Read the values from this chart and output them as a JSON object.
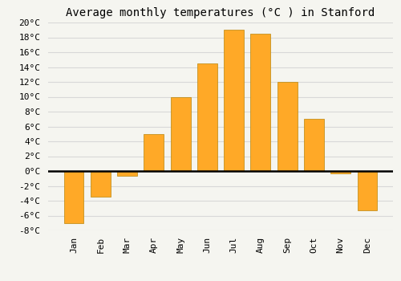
{
  "title": "Average monthly temperatures (°C ) in Stanford",
  "months": [
    "Jan",
    "Feb",
    "Mar",
    "Apr",
    "May",
    "Jun",
    "Jul",
    "Aug",
    "Sep",
    "Oct",
    "Nov",
    "Dec"
  ],
  "values": [
    -7,
    -3.5,
    -0.7,
    5,
    10,
    14.5,
    19,
    18.5,
    12,
    7,
    -0.3,
    -5.3
  ],
  "bar_color": "#FFA927",
  "bar_edge_color": "#B8860B",
  "ylim": [
    -8,
    20
  ],
  "yticks": [
    -8,
    -6,
    -4,
    -2,
    0,
    2,
    4,
    6,
    8,
    10,
    12,
    14,
    16,
    18,
    20
  ],
  "background_color": "#f5f5f0",
  "plot_bg_color": "#f5f5f0",
  "grid_color": "#d8d8d8",
  "title_fontsize": 10,
  "tick_fontsize": 8,
  "zero_line_color": "#000000",
  "bar_width": 0.75
}
